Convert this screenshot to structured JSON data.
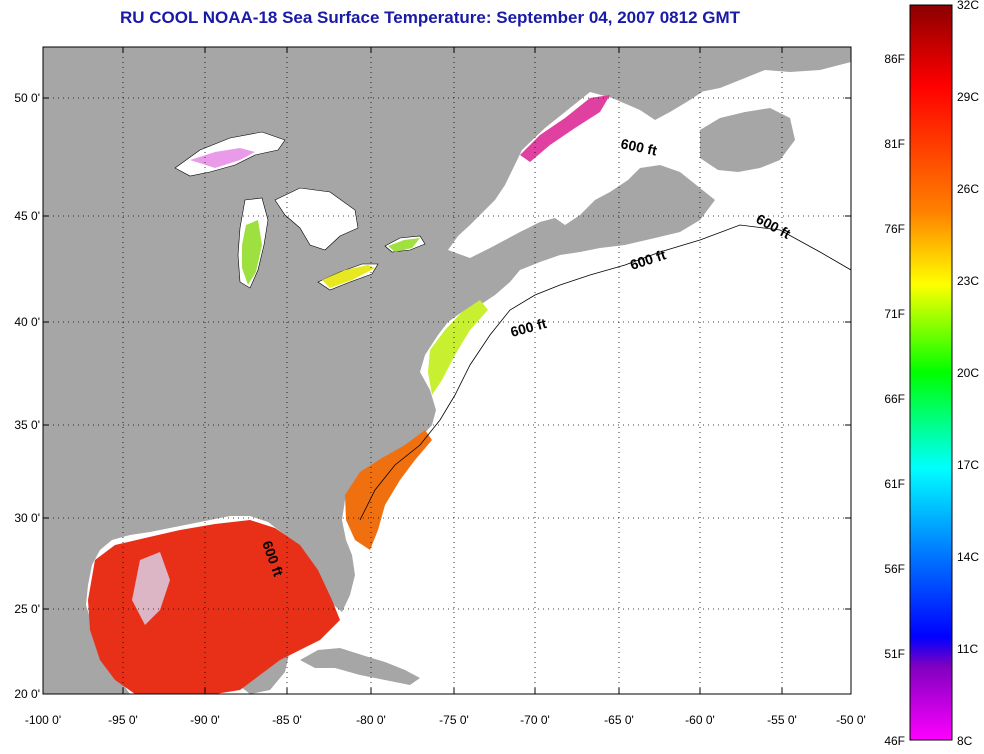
{
  "title": "RU COOL  NOAA-18  Sea Surface Temperature:  September 04, 2007 0812 GMT",
  "axes": {
    "lat_labels": [
      "50 0'",
      "45 0'",
      "40 0'",
      "35 0'",
      "30 0'",
      "25 0'",
      "20 0'"
    ],
    "lon_labels": [
      "-100 0'",
      "-95 0'",
      "-90 0'",
      "-85 0'",
      "-80 0'",
      "-75 0'",
      "-70 0'",
      "-65 0'",
      "-60 0'",
      "-55 0'",
      "-50 0'"
    ]
  },
  "contour_labels": [
    "600 ft",
    "600 ft",
    "600 ft",
    "600 ft",
    "600 ft"
  ],
  "colorbar": {
    "celsius": [
      "32C",
      "29C",
      "26C",
      "23C",
      "20C",
      "17C",
      "14C",
      "11C",
      "8C"
    ],
    "fahrenheit": [
      "86F",
      "81F",
      "76F",
      "71F",
      "66F",
      "61F",
      "56F",
      "51F",
      "46F"
    ],
    "stops": [
      "#8b0000",
      "#ff0000",
      "#ff8000",
      "#ffff00",
      "#00ff00",
      "#00ffff",
      "#0080ff",
      "#0000ff",
      "#8000c0",
      "#ff00ff"
    ]
  },
  "colors": {
    "land": "#a6a6a6",
    "ocean": "#ffffff",
    "title": "#1a1aa8"
  }
}
